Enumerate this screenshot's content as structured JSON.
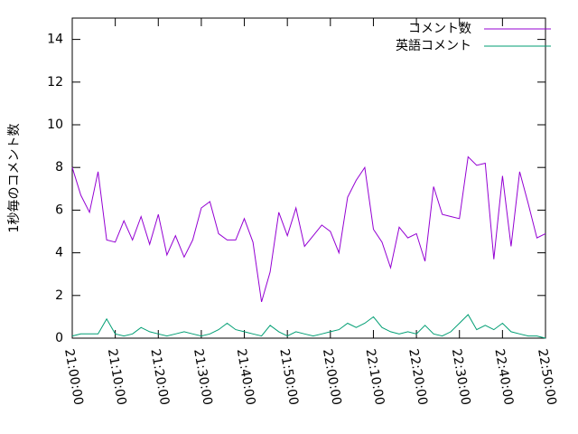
{
  "chart_data": {
    "type": "line",
    "ylabel": "1秒毎のコメント数",
    "x": [
      "21:00:00",
      "21:02:00",
      "21:04:00",
      "21:06:00",
      "21:08:00",
      "21:10:00",
      "21:12:00",
      "21:14:00",
      "21:16:00",
      "21:18:00",
      "21:20:00",
      "21:22:00",
      "21:24:00",
      "21:26:00",
      "21:28:00",
      "21:30:00",
      "21:32:00",
      "21:34:00",
      "21:36:00",
      "21:38:00",
      "21:40:00",
      "21:42:00",
      "21:44:00",
      "21:46:00",
      "21:48:00",
      "21:50:00",
      "21:52:00",
      "21:54:00",
      "21:56:00",
      "21:58:00",
      "22:00:00",
      "22:02:00",
      "22:04:00",
      "22:06:00",
      "22:08:00",
      "22:10:00",
      "22:12:00",
      "22:14:00",
      "22:16:00",
      "22:18:00",
      "22:20:00",
      "22:22:00",
      "22:24:00",
      "22:26:00",
      "22:28:00",
      "22:30:00",
      "22:32:00",
      "22:34:00",
      "22:36:00",
      "22:38:00",
      "22:40:00",
      "22:42:00",
      "22:44:00",
      "22:46:00",
      "22:48:00",
      "22:50:00"
    ],
    "series": [
      {
        "name": "コメント数",
        "color": "#9400d3",
        "values": [
          8.0,
          6.7,
          5.9,
          7.8,
          4.6,
          4.5,
          5.5,
          4.6,
          5.7,
          4.4,
          5.8,
          3.9,
          4.8,
          3.8,
          4.6,
          6.1,
          6.4,
          4.9,
          4.6,
          4.6,
          5.6,
          4.5,
          1.7,
          3.1,
          5.9,
          4.8,
          6.1,
          4.3,
          4.8,
          5.3,
          5.0,
          4.0,
          6.6,
          7.4,
          8.0,
          5.1,
          4.5,
          3.3,
          5.2,
          4.7,
          4.9,
          3.6,
          7.1,
          5.8,
          5.7,
          5.6,
          8.5,
          8.1,
          8.2,
          3.7,
          7.6,
          4.3,
          7.8,
          6.3,
          4.7,
          4.9
        ]
      },
      {
        "name": "英語コメント",
        "color": "#009e73",
        "values": [
          0.1,
          0.2,
          0.2,
          0.2,
          0.9,
          0.2,
          0.1,
          0.2,
          0.5,
          0.3,
          0.2,
          0.1,
          0.2,
          0.3,
          0.2,
          0.1,
          0.2,
          0.4,
          0.7,
          0.4,
          0.3,
          0.2,
          0.1,
          0.6,
          0.3,
          0.1,
          0.3,
          0.2,
          0.1,
          0.2,
          0.3,
          0.4,
          0.7,
          0.5,
          0.7,
          1.0,
          0.5,
          0.3,
          0.2,
          0.3,
          0.2,
          0.6,
          0.2,
          0.1,
          0.3,
          0.7,
          1.1,
          0.4,
          0.6,
          0.4,
          0.7,
          0.3,
          0.2,
          0.1,
          0.1,
          0.0
        ]
      }
    ],
    "xlim": [
      "21:00:00",
      "22:50:00"
    ],
    "xticks": [
      "21:00:00",
      "21:10:00",
      "21:20:00",
      "21:30:00",
      "21:40:00",
      "21:50:00",
      "22:00:00",
      "22:10:00",
      "22:20:00",
      "22:30:00",
      "22:40:00",
      "22:50:00"
    ],
    "ylim": [
      0,
      15
    ],
    "yticks": [
      0,
      2,
      4,
      6,
      8,
      10,
      12,
      14
    ],
    "legend": "top-right"
  }
}
